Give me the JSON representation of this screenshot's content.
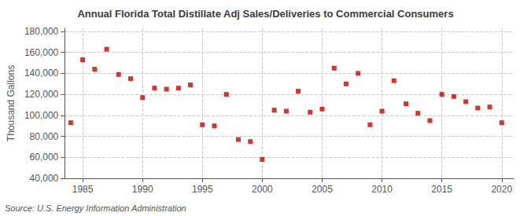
{
  "chart_data": {
    "type": "scatter",
    "title": "Annual Florida Total Distillate Adj Sales/Deliveries to Commercial Consumers",
    "ylabel": "Thousand Gallons",
    "annotation": "Source: U.S. Energy Information Administration",
    "color": "#CC0000",
    "marker": "square",
    "grid": true,
    "xlim": [
      1983.5,
      2021
    ],
    "xticks": [
      1985,
      1990,
      1995,
      2000,
      2005,
      2010,
      2015,
      2020
    ],
    "ylim": [
      40000,
      183000
    ],
    "yticks": [
      {
        "value": 40000,
        "label": "40,000"
      },
      {
        "value": 60000,
        "label": "60,000"
      },
      {
        "value": 80000,
        "label": "80,000"
      },
      {
        "value": 100000,
        "label": "100,000"
      },
      {
        "value": 120000,
        "label": "120,000"
      },
      {
        "value": 140000,
        "label": "140,000"
      },
      {
        "value": 160000,
        "label": "160,000"
      },
      {
        "value": 180000,
        "label": "180,000"
      }
    ],
    "x": [
      1984,
      1985,
      1986,
      1987,
      1988,
      1989,
      1990,
      1991,
      1992,
      1993,
      1994,
      1995,
      1996,
      1997,
      1998,
      1999,
      2000,
      2001,
      2002,
      2003,
      2004,
      2005,
      2006,
      2007,
      2008,
      2009,
      2010,
      2011,
      2012,
      2013,
      2014,
      2015,
      2016,
      2017,
      2018,
      2019,
      2020
    ],
    "values": [
      93000,
      153000,
      144000,
      163000,
      139000,
      135000,
      117000,
      126000,
      125000,
      126000,
      129000,
      91000,
      90000,
      120000,
      77000,
      75000,
      58000,
      105000,
      104000,
      123000,
      103000,
      106000,
      145000,
      130000,
      140000,
      91000,
      104000,
      133000,
      111000,
      102000,
      95000,
      120000,
      118000,
      113000,
      107000,
      108000,
      93000
    ]
  }
}
